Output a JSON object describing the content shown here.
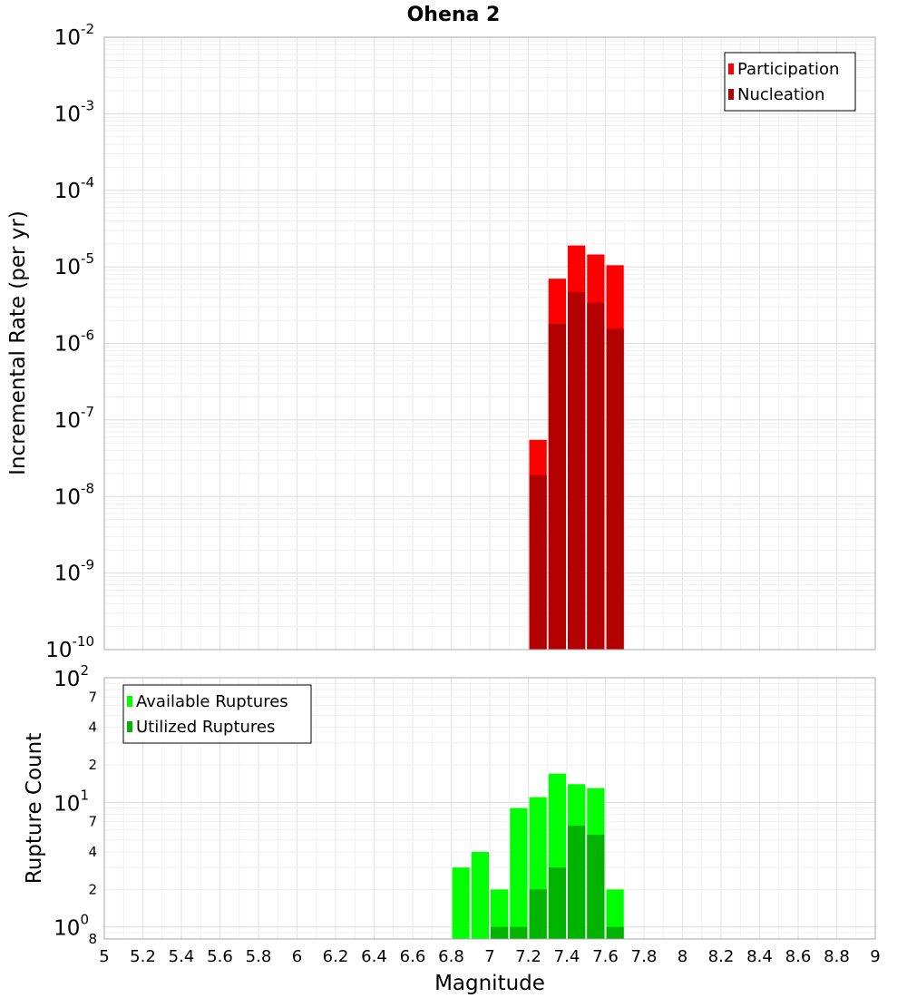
{
  "chart_data": [
    {
      "type": "bar",
      "title": "Ohena 2",
      "xlabel": "",
      "ylabel": "Incremental Rate (per yr)",
      "xlim": [
        5,
        9
      ],
      "ylim": [
        1e-10,
        0.01
      ],
      "y_scale": "log",
      "grid": true,
      "legend_position": "top-right",
      "bin_width": 0.1,
      "y_ticks": [
        {
          "base": "10",
          "exp": "-10"
        },
        {
          "base": "10",
          "exp": "-9"
        },
        {
          "base": "10",
          "exp": "-8"
        },
        {
          "base": "10",
          "exp": "-7"
        },
        {
          "base": "10",
          "exp": "-6"
        },
        {
          "base": "10",
          "exp": "-5"
        },
        {
          "base": "10",
          "exp": "-4"
        },
        {
          "base": "10",
          "exp": "-3"
        },
        {
          "base": "10",
          "exp": "-2"
        }
      ],
      "series": [
        {
          "name": "Participation",
          "color": "#ff0000",
          "x": [
            7.25,
            7.35,
            7.45,
            7.55,
            7.65
          ],
          "values": [
            5.5e-08,
            7e-06,
            1.9e-05,
            1.45e-05,
            1.05e-05
          ]
        },
        {
          "name": "Nucleation",
          "color": "#b30000",
          "x": [
            7.25,
            7.35,
            7.45,
            7.55,
            7.65
          ],
          "values": [
            1.9e-08,
            1.8e-06,
            4.7e-06,
            3.4e-06,
            1.55e-06
          ]
        }
      ]
    },
    {
      "type": "bar",
      "title": "",
      "xlabel": "Magnitude",
      "ylabel": "Rupture Count",
      "xlim": [
        5,
        9
      ],
      "ylim": [
        0.8,
        100
      ],
      "y_scale": "log",
      "grid": true,
      "legend_position": "top-left",
      "bin_width": 0.1,
      "x_ticks": [
        "5",
        "5.2",
        "5.4",
        "5.6",
        "5.8",
        "6",
        "6.2",
        "6.4",
        "6.6",
        "6.8",
        "7",
        "7.2",
        "7.4",
        "7.6",
        "7.8",
        "8",
        "8.2",
        "8.4",
        "8.6",
        "8.8",
        "9"
      ],
      "y_major_ticks": [
        {
          "value": 1,
          "base": "10",
          "exp": "0"
        },
        {
          "value": 10,
          "base": "10",
          "exp": "1"
        },
        {
          "value": 100,
          "base": "10",
          "exp": "2"
        }
      ],
      "y_minor_ticks": [
        {
          "value": 0.8,
          "label": "8"
        },
        {
          "value": 2,
          "label": "2"
        },
        {
          "value": 4,
          "label": "4"
        },
        {
          "value": 7,
          "label": "7"
        },
        {
          "value": 20,
          "label": "2"
        },
        {
          "value": 40,
          "label": "4"
        },
        {
          "value": 70,
          "label": "7"
        }
      ],
      "series": [
        {
          "name": "Available Ruptures",
          "color": "#00ff00",
          "x": [
            6.85,
            6.95,
            7.05,
            7.15,
            7.25,
            7.35,
            7.45,
            7.55,
            7.65
          ],
          "values": [
            3,
            4,
            2,
            9,
            11,
            17,
            14,
            13,
            2
          ]
        },
        {
          "name": "Utilized Ruptures",
          "color": "#00b300",
          "x": [
            7.05,
            7.15,
            7.25,
            7.35,
            7.45,
            7.55,
            7.65
          ],
          "values": [
            1,
            1,
            2,
            3,
            6.5,
            5.5,
            1
          ]
        }
      ]
    }
  ]
}
